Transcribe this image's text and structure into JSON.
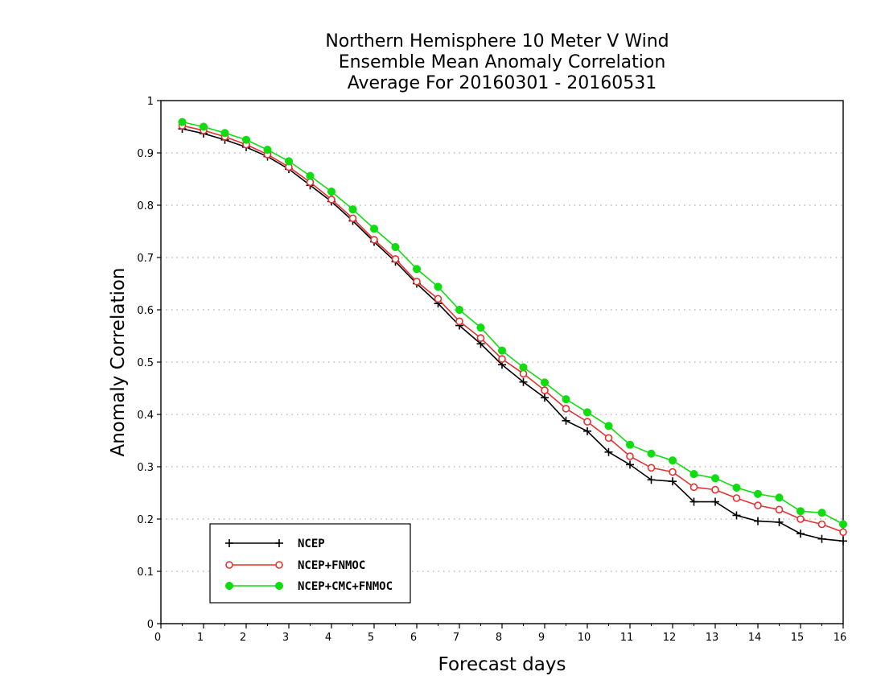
{
  "chart_data": {
    "type": "line",
    "title_lines": [
      "Northern Hemisphere 10 Meter V Wind",
      "Ensemble Mean Anomaly Correlation",
      "Average For 20160301 - 20160531"
    ],
    "xlabel": "Forecast days",
    "ylabel": "Anomaly Correlation",
    "xlim": [
      0,
      16
    ],
    "ylim": [
      0,
      1
    ],
    "xticks": [
      "0",
      "1",
      "2",
      "3",
      "4",
      "5",
      "6",
      "7",
      "8",
      "9",
      "10",
      "11",
      "12",
      "13",
      "14",
      "15",
      "16"
    ],
    "yticks": [
      "0",
      "0.1",
      "0.2",
      "0.3",
      "0.4",
      "0.5",
      "0.6",
      "0.7",
      "0.8",
      "0.9",
      "1"
    ],
    "grid": true,
    "legend_position": "bottom-left",
    "x": [
      0.5,
      1,
      1.5,
      2,
      2.5,
      3,
      3.5,
      4,
      4.5,
      5,
      5.5,
      6,
      6.5,
      7,
      7.5,
      8,
      8.5,
      9,
      9.5,
      10,
      10.5,
      11,
      11.5,
      12,
      12.5,
      13,
      13.5,
      14,
      14.5,
      15,
      15.5,
      16
    ],
    "series": [
      {
        "name": "NCEP",
        "color": "#000000",
        "marker": "plus",
        "values": [
          0.946,
          0.937,
          0.925,
          0.911,
          0.893,
          0.869,
          0.838,
          0.807,
          0.77,
          0.73,
          0.692,
          0.65,
          0.612,
          0.57,
          0.535,
          0.495,
          0.462,
          0.432,
          0.388,
          0.368,
          0.328,
          0.304,
          0.275,
          0.272,
          0.233,
          0.233,
          0.207,
          0.196,
          0.194,
          0.172,
          0.162,
          0.158
        ]
      },
      {
        "name": "NCEP+FNMOC",
        "color": "#e83030",
        "marker": "open-circle",
        "values": [
          0.952,
          0.943,
          0.931,
          0.916,
          0.897,
          0.873,
          0.844,
          0.811,
          0.775,
          0.734,
          0.697,
          0.654,
          0.621,
          0.578,
          0.546,
          0.506,
          0.478,
          0.446,
          0.411,
          0.386,
          0.355,
          0.32,
          0.298,
          0.29,
          0.261,
          0.256,
          0.24,
          0.226,
          0.218,
          0.2,
          0.19,
          0.175
        ]
      },
      {
        "name": "NCEP+CMC+FNMOC",
        "color": "#10dd10",
        "marker": "filled-circle",
        "values": [
          0.959,
          0.95,
          0.938,
          0.925,
          0.906,
          0.884,
          0.856,
          0.826,
          0.792,
          0.755,
          0.72,
          0.678,
          0.644,
          0.6,
          0.566,
          0.522,
          0.49,
          0.461,
          0.429,
          0.404,
          0.378,
          0.342,
          0.325,
          0.312,
          0.286,
          0.278,
          0.26,
          0.248,
          0.241,
          0.215,
          0.212,
          0.19
        ]
      }
    ]
  }
}
